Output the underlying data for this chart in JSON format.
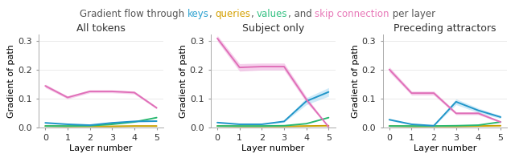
{
  "title_parts": [
    {
      "text": "Gradient flow through ",
      "color": "#555555"
    },
    {
      "text": "keys",
      "color": "#29a0d0"
    },
    {
      "text": ", ",
      "color": "#555555"
    },
    {
      "text": "queries",
      "color": "#d4a000"
    },
    {
      "text": ", ",
      "color": "#555555"
    },
    {
      "text": "values",
      "color": "#30c080"
    },
    {
      "text": ", and ",
      "color": "#555555"
    },
    {
      "text": "skip connection",
      "color": "#e878b8"
    },
    {
      "text": " per layer",
      "color": "#555555"
    }
  ],
  "subplots": [
    {
      "title": "All tokens",
      "keys_mean": [
        0.015,
        0.01,
        0.007,
        0.015,
        0.02,
        0.021
      ],
      "keys_std": [
        0.002,
        0.002,
        0.001,
        0.002,
        0.002,
        0.002
      ],
      "queries_mean": [
        0.004,
        0.003,
        0.003,
        0.003,
        0.004,
        0.004
      ],
      "queries_std": [
        0.001,
        0.001,
        0.001,
        0.001,
        0.001,
        0.001
      ],
      "values_mean": [
        0.004,
        0.004,
        0.005,
        0.01,
        0.018,
        0.033
      ],
      "values_std": [
        0.001,
        0.001,
        0.001,
        0.001,
        0.002,
        0.003
      ],
      "skip_mean": [
        0.143,
        0.103,
        0.124,
        0.124,
        0.12,
        0.067
      ],
      "skip_std": [
        0.006,
        0.005,
        0.005,
        0.005,
        0.005,
        0.004
      ]
    },
    {
      "title": "Subject only",
      "keys_mean": [
        0.016,
        0.01,
        0.01,
        0.02,
        0.09,
        0.122
      ],
      "keys_std": [
        0.002,
        0.002,
        0.002,
        0.003,
        0.012,
        0.015
      ],
      "queries_mean": [
        0.004,
        0.003,
        0.003,
        0.003,
        0.004,
        0.005
      ],
      "queries_std": [
        0.001,
        0.001,
        0.001,
        0.001,
        0.001,
        0.001
      ],
      "values_mean": [
        0.004,
        0.004,
        0.004,
        0.005,
        0.012,
        0.033
      ],
      "values_std": [
        0.001,
        0.001,
        0.001,
        0.001,
        0.002,
        0.004
      ],
      "skip_mean": [
        0.308,
        0.207,
        0.21,
        0.21,
        0.096,
        0.001
      ],
      "skip_std": [
        0.01,
        0.013,
        0.012,
        0.012,
        0.01,
        0.001
      ]
    },
    {
      "title": "Preceding attractors",
      "keys_mean": [
        0.026,
        0.01,
        0.005,
        0.088,
        0.058,
        0.035
      ],
      "keys_std": [
        0.003,
        0.002,
        0.001,
        0.01,
        0.008,
        0.005
      ],
      "queries_mean": [
        0.004,
        0.003,
        0.003,
        0.003,
        0.004,
        0.005
      ],
      "queries_std": [
        0.001,
        0.001,
        0.001,
        0.001,
        0.001,
        0.001
      ],
      "values_mean": [
        0.004,
        0.004,
        0.004,
        0.005,
        0.007,
        0.018
      ],
      "values_std": [
        0.001,
        0.001,
        0.001,
        0.001,
        0.001,
        0.002
      ],
      "skip_mean": [
        0.2,
        0.118,
        0.118,
        0.048,
        0.048,
        0.018
      ],
      "skip_std": [
        0.009,
        0.007,
        0.007,
        0.005,
        0.005,
        0.003
      ]
    }
  ],
  "keys_color": "#2196c9",
  "queries_color": "#c8a000",
  "values_color": "#28b870",
  "skip_color": "#e070b8",
  "skip_fill_color": "#eeaadd",
  "keys_fill_color": "#88ccee",
  "lw": 1.4,
  "ylim": [
    0.0,
    0.32
  ],
  "yticks": [
    0.0,
    0.1,
    0.2,
    0.3
  ],
  "xticks": [
    0,
    1,
    2,
    3,
    4,
    5
  ],
  "xlabel": "Layer number",
  "ylabel": "Gradient of path",
  "figsize": [
    6.4,
    2.02
  ],
  "dpi": 100
}
